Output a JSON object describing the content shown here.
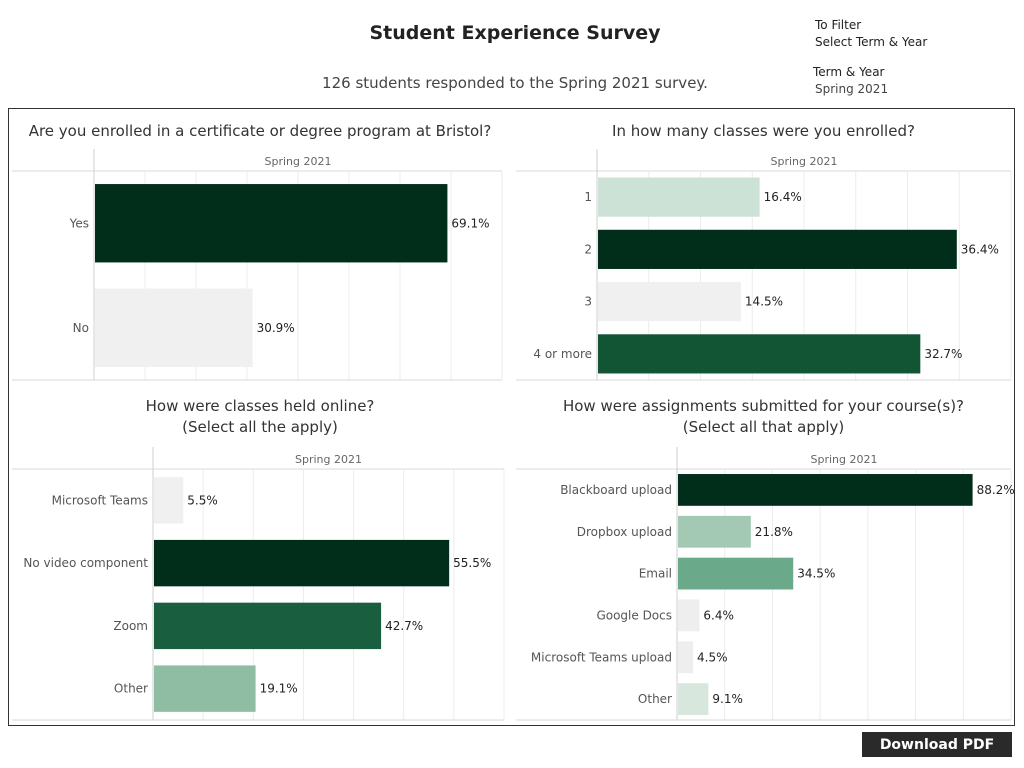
{
  "header": {
    "title": "Student Experience Survey",
    "subtitle": "126 students responded to the Spring 2021 survey.",
    "filter_note_line1": "To Filter",
    "filter_note_line2": "Select Term & Year",
    "term_label": "Term & Year",
    "term_value": "Spring 2021"
  },
  "download_label": "Download PDF",
  "chart_data": [
    {
      "type": "bar",
      "orientation": "horizontal",
      "title": "Are you enrolled in a certificate or degree program at Bristol?",
      "column_header": "Spring 2021",
      "categories": [
        "Yes",
        "No"
      ],
      "values": [
        69.1,
        30.9
      ],
      "labels": [
        "69.1%",
        "30.9%"
      ],
      "colors": [
        "#002e1b",
        "#f0f0f0"
      ],
      "xlim": [
        0,
        80
      ]
    },
    {
      "type": "bar",
      "orientation": "horizontal",
      "title": "In how many classes were you enrolled?",
      "column_header": "Spring 2021",
      "categories": [
        "1",
        "2",
        "3",
        "4 or more"
      ],
      "values": [
        16.4,
        36.4,
        14.5,
        32.7
      ],
      "labels": [
        "16.4%",
        "36.4%",
        "14.5%",
        "32.7%"
      ],
      "colors": [
        "#cde2d7",
        "#002e1b",
        "#f0f0f0",
        "#115534"
      ],
      "xlim": [
        0,
        42
      ]
    },
    {
      "type": "bar",
      "orientation": "horizontal",
      "title": "How were classes held online?",
      "title_line2": "(Select all the apply)",
      "column_header": "Spring 2021",
      "categories": [
        "Microsoft Teams",
        "No video component",
        "Zoom",
        "Other"
      ],
      "values": [
        5.5,
        55.5,
        42.7,
        19.1
      ],
      "labels": [
        "5.5%",
        "55.5%",
        "42.7%",
        "19.1%"
      ],
      "colors": [
        "#f0f0f0",
        "#002e1b",
        "#1a5e40",
        "#8fbda4"
      ],
      "xlim": [
        0,
        66
      ]
    },
    {
      "type": "bar",
      "orientation": "horizontal",
      "title": "How were assignments submitted for your course(s)?",
      "title_line2": "(Select all that apply)",
      "column_header": "Spring 2021",
      "categories": [
        "Blackboard upload",
        "Dropbox upload",
        "Email",
        "Google Docs",
        "Microsoft Teams upload",
        "Other"
      ],
      "values": [
        88.2,
        21.8,
        34.5,
        6.4,
        4.5,
        9.1
      ],
      "labels": [
        "88.2%",
        "21.8%",
        "34.5%",
        "6.4%",
        "4.5%",
        "9.1%"
      ],
      "colors": [
        "#002e1b",
        "#a3c8b4",
        "#6aaa8a",
        "#eeeeee",
        "#eeeeee",
        "#d8e7dd"
      ],
      "xlim": [
        0,
        100
      ]
    }
  ]
}
